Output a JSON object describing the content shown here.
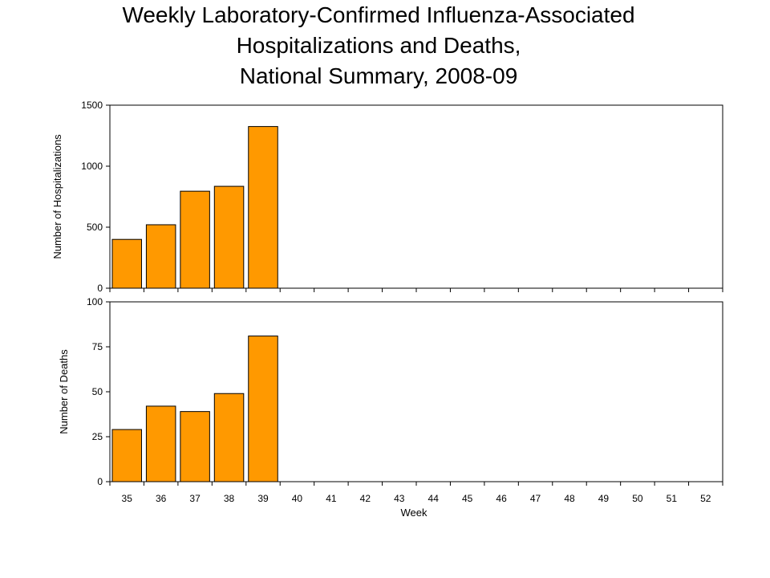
{
  "title_lines": [
    "Weekly Laboratory-Confirmed Influenza-Associated",
    "Hospitalizations and Deaths,",
    "National Summary, 2008-09"
  ],
  "chart_data": [
    {
      "type": "bar",
      "ylabel": "Number of Hospitalizations",
      "xlabel": "",
      "ylim": [
        0,
        1500
      ],
      "yticks": [
        0,
        500,
        1000,
        1500
      ],
      "categories": [
        "35",
        "36",
        "37",
        "38",
        "39",
        "40",
        "41",
        "42",
        "43",
        "44",
        "45",
        "46",
        "47",
        "48",
        "49",
        "50",
        "51",
        "52"
      ],
      "values": [
        400,
        520,
        795,
        835,
        1325,
        null,
        null,
        null,
        null,
        null,
        null,
        null,
        null,
        null,
        null,
        null,
        null,
        null
      ],
      "bar_color": "#FF9900"
    },
    {
      "type": "bar",
      "ylabel": "Number of Deaths",
      "xlabel": "Week",
      "ylim": [
        0,
        100
      ],
      "yticks": [
        0,
        25,
        50,
        75,
        100
      ],
      "categories": [
        "35",
        "36",
        "37",
        "38",
        "39",
        "40",
        "41",
        "42",
        "43",
        "44",
        "45",
        "46",
        "47",
        "48",
        "49",
        "50",
        "51",
        "52"
      ],
      "values": [
        29,
        42,
        39,
        49,
        81,
        null,
        null,
        null,
        null,
        null,
        null,
        null,
        null,
        null,
        null,
        null,
        null,
        null
      ],
      "bar_color": "#FF9900"
    }
  ]
}
